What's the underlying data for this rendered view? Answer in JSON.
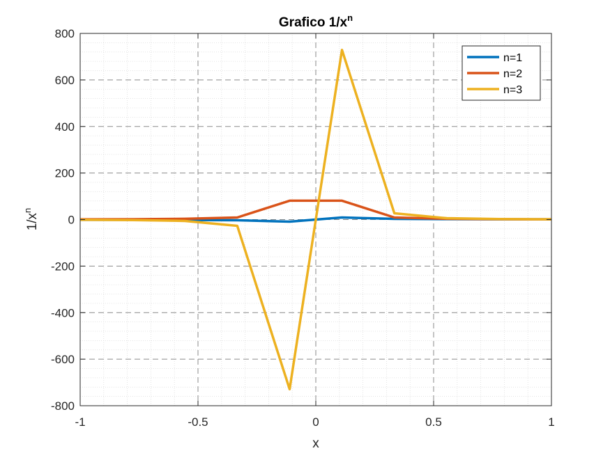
{
  "chart_data": {
    "type": "line",
    "title": "Grafico 1/x",
    "title_superscript": "n",
    "xlabel": "x",
    "ylabel": "1/x",
    "ylabel_superscript": "n",
    "xlim": [
      -1,
      1
    ],
    "ylim": [
      -800,
      800
    ],
    "xticks": [
      -1,
      -0.5,
      0,
      0.5,
      1
    ],
    "xtick_labels": [
      "-1",
      "-0.5",
      "0",
      "0.5",
      "1"
    ],
    "yticks": [
      -800,
      -600,
      -400,
      -200,
      0,
      200,
      400,
      600,
      800
    ],
    "ytick_labels": [
      "-800",
      "-600",
      "-400",
      "-200",
      "0",
      "200",
      "400",
      "600",
      "800"
    ],
    "grid": true,
    "minor_grid": true,
    "legend_position": "top-right",
    "x": [
      -1,
      -0.7778,
      -0.5556,
      -0.3333,
      -0.1111,
      0,
      0.1111,
      0.3333,
      0.5556,
      0.7778,
      1
    ],
    "series": [
      {
        "name": "n=1",
        "color": "#0072BD",
        "values": [
          -1,
          -1.29,
          -1.8,
          -3,
          -9,
          0,
          9,
          3,
          1.8,
          1.29,
          1
        ]
      },
      {
        "name": "n=2",
        "color": "#D95319",
        "values": [
          1,
          1.65,
          3.24,
          9,
          81,
          81,
          81,
          9,
          3.24,
          1.65,
          1
        ]
      },
      {
        "name": "n=3",
        "color": "#EDB120",
        "values": [
          -1,
          -2.13,
          -5.83,
          -27,
          -729,
          0,
          729,
          27,
          5.83,
          2.13,
          1
        ]
      }
    ]
  }
}
